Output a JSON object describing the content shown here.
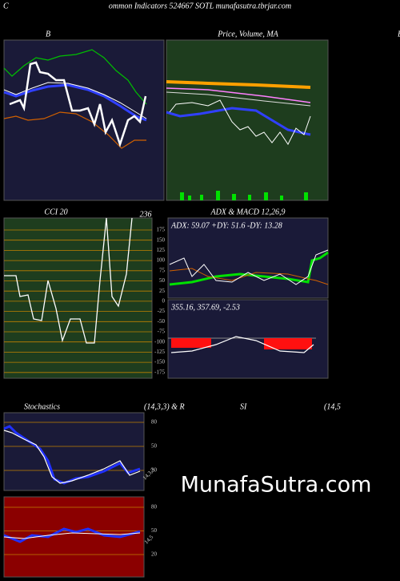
{
  "header": {
    "corner": "C",
    "title": "ommon  Indicators 524667 SOTL  munafasutra.tbrjar.com"
  },
  "panels": [
    {
      "title": "B",
      "edge_label": "B"
    },
    {
      "title": "Price, Volume, MA"
    },
    {
      "title": "CCI 20",
      "top_label": "236",
      "ticks": [
        "175",
        "150",
        "125",
        "100",
        "75",
        "50",
        "25",
        "0",
        "-25",
        "-50",
        "-75",
        "-100",
        "-125",
        "-150",
        "-175"
      ]
    },
    {
      "title": "ADX  & MACD 12,26,9",
      "adx_text": "ADX: 59.07  +DY: 51.6  -DY: 13.28",
      "macd_text": "355.16,  357.69,  -2.53"
    },
    {
      "title": "Stochastics",
      "params": "(14,3,3) & R",
      "ticks": [
        "80",
        "50",
        "20"
      ],
      "line_label": "14,3,3"
    },
    {
      "title": "SI",
      "params": "(14,5",
      "ticks": [
        "80",
        "50",
        "20"
      ],
      "line_label": "14,5"
    }
  ],
  "watermark": "MunafaSutra.com"
}
